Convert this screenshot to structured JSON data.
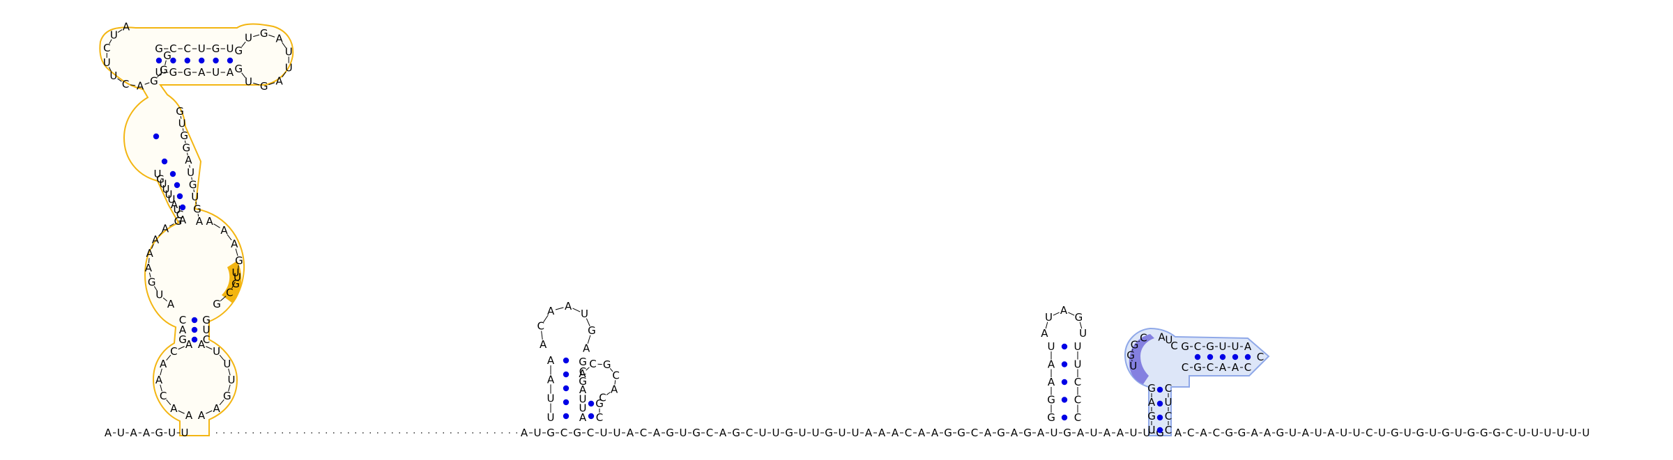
{
  "colors": {
    "base_pair_dot": "#0000e6",
    "domain_1_outline": "#f3b511",
    "domain_1_fill": "#fffdf5",
    "domain_1_highlight": "#f3b511",
    "domain_2_outline": "#8fa8e8",
    "domain_2_fill": "#dde6f8",
    "domain_2_highlight": "#8480e0"
  },
  "sequence": {
    "left_tail": "AUAAGUU",
    "right_tail": "ACACGGAAGUAUAUUCUGUGUGUGGGCUUUUUU"
  },
  "structures": {
    "domain_1": {
      "hairpin_left_loop": "GGGACUUCUA",
      "hairpin_right_loop": "GUGAUUAGUG",
      "stem_top_5p": "GCCUGU",
      "stem_top_3p": "UGGAUA",
      "interior_left": "UGUUUUAUCA",
      "interior_right": "GUGGAUGUGA",
      "big_loop_left": "AUGAAAAG",
      "big_loop_right": "AAAGUCG",
      "highlight_bases": "UG",
      "lower_left": "GAC",
      "lower_right": "CUG",
      "bottom_loop_left": "AACAACA",
      "bottom_loop_right": "AUUUGAA"
    },
    "domain_2": {
      "left_stem": "UUAA",
      "hairpin_loop": "ACAAUGA",
      "mid": "GCG",
      "small_loop": "ACGCAC",
      "right_stem": "AUUA",
      "right_foot": "CG"
    },
    "domain_3": {
      "stem_left": "GGAAU",
      "loop": "AUAGU",
      "stem_right": "CCCUU"
    },
    "domain_4": {
      "highlight_bases": "CGGU",
      "loop": "AUC",
      "stem_5p": "GCGUUA",
      "stem_3p": "CGCAAC",
      "hairpin_tip": "C",
      "left_column": "UGAG",
      "right_column": "CCUC"
    },
    "middle_strand": "AUGCGCUUACAGUGCAGCUUGUUGUUAAACAAGGCAGAGAUGAUAAUUG"
  }
}
